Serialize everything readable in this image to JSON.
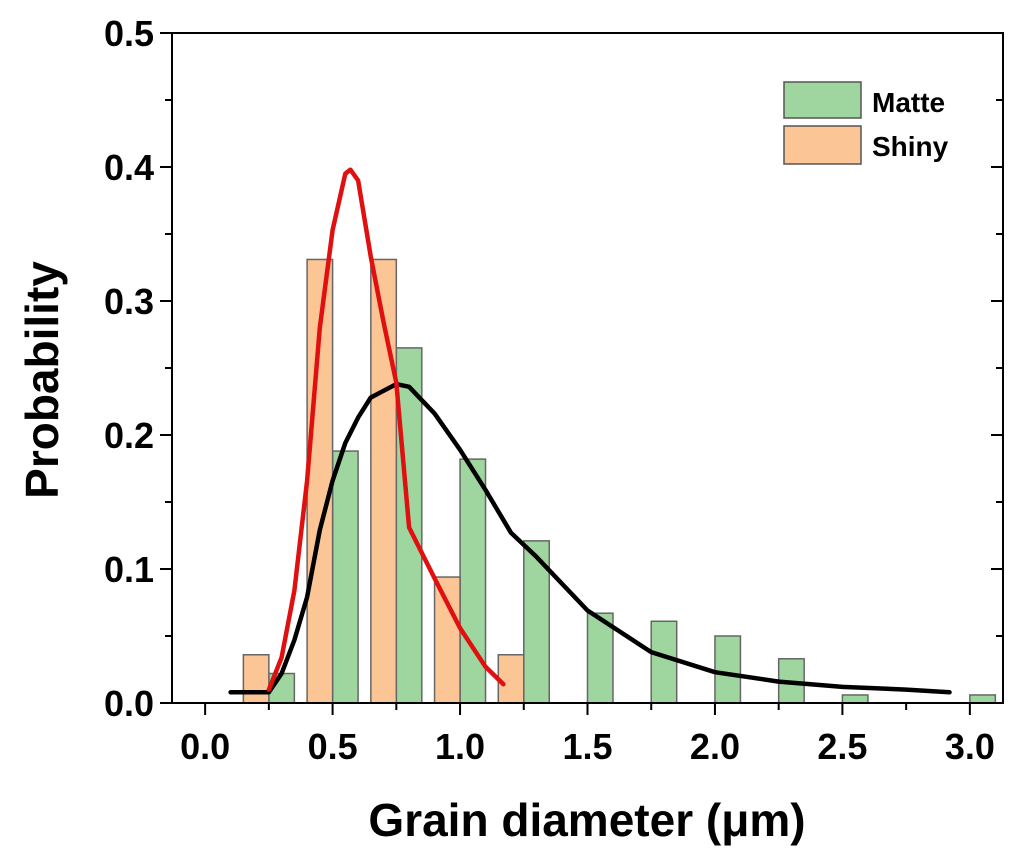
{
  "chart_data": {
    "type": "bar",
    "title": "",
    "xlabel": "Grain diameter (μm)",
    "ylabel": "Probability",
    "xlim": [
      -0.13,
      3.13
    ],
    "ylim": [
      0,
      0.5
    ],
    "xticks": [
      "0.0",
      "0.5",
      "1.0",
      "1.5",
      "2.0",
      "2.5",
      "3.0"
    ],
    "yticks": [
      "0.0",
      "0.1",
      "0.2",
      "0.3",
      "0.4",
      "0.5"
    ],
    "grid": false,
    "legend_position": "top-right",
    "bin_width": 0.25,
    "series": [
      {
        "name": "Matte",
        "color": "#9fd6a0",
        "bins": [
          0.25,
          0.5,
          0.75,
          1.0,
          1.25,
          1.5,
          1.75,
          2.0,
          2.25,
          2.5,
          2.75,
          3.0
        ],
        "values": [
          0.022,
          0.188,
          0.265,
          0.182,
          0.121,
          0.067,
          0.061,
          0.05,
          0.033,
          0.006,
          0.0,
          0.006
        ],
        "fit_color": "#000000",
        "fit": {
          "x": [
            0.1,
            0.25,
            0.3,
            0.35,
            0.4,
            0.45,
            0.5,
            0.55,
            0.6,
            0.65,
            0.75,
            0.8,
            0.9,
            1.0,
            1.1,
            1.2,
            1.3,
            1.5,
            1.75,
            2.0,
            2.25,
            2.5,
            2.75,
            2.92
          ],
          "y": [
            0.008,
            0.008,
            0.022,
            0.047,
            0.079,
            0.129,
            0.166,
            0.194,
            0.213,
            0.228,
            0.238,
            0.236,
            0.216,
            0.189,
            0.159,
            0.127,
            0.109,
            0.069,
            0.038,
            0.023,
            0.016,
            0.012,
            0.01,
            0.008
          ]
        }
      },
      {
        "name": "Shiny",
        "color": "#fcc596",
        "bins": [
          0.25,
          0.5,
          0.75,
          1.0,
          1.25
        ],
        "values": [
          0.036,
          0.331,
          0.331,
          0.094,
          0.036
        ],
        "fit_color": "#e01010",
        "fit": {
          "x": [
            0.25,
            0.3,
            0.35,
            0.4,
            0.45,
            0.5,
            0.55,
            0.57,
            0.6,
            0.65,
            0.7,
            0.75,
            0.8,
            0.9,
            1.0,
            1.1,
            1.17
          ],
          "y": [
            0.01,
            0.034,
            0.084,
            0.166,
            0.28,
            0.353,
            0.395,
            0.398,
            0.39,
            0.333,
            0.284,
            0.239,
            0.131,
            0.093,
            0.056,
            0.027,
            0.014
          ]
        }
      }
    ]
  }
}
